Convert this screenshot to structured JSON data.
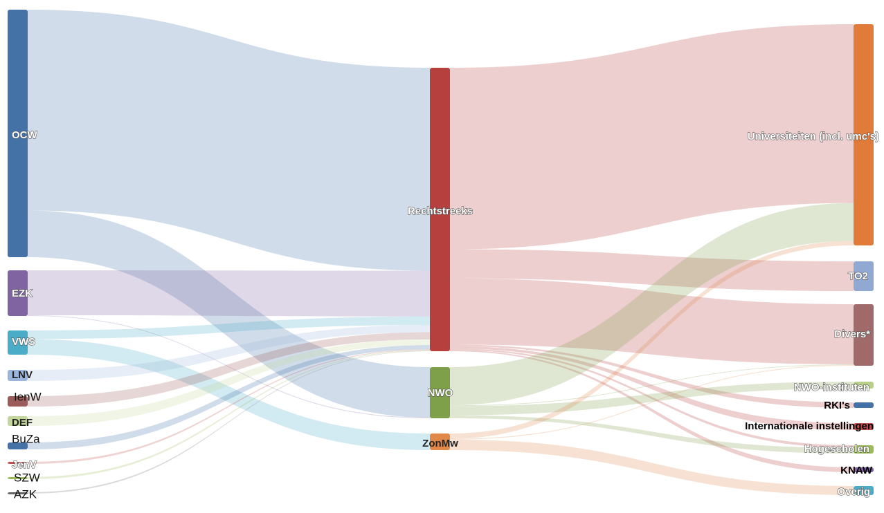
{
  "chart_data": {
    "type": "sankey",
    "nodes": [
      {
        "id": "OCW",
        "label": "OCW",
        "column": 0,
        "color": "#4472a6"
      },
      {
        "id": "EZK",
        "label": "EZK",
        "column": 0,
        "color": "#8064a2"
      },
      {
        "id": "VWS",
        "label": "VWS",
        "column": 0,
        "color": "#4aacc6"
      },
      {
        "id": "LNV",
        "label": "LNV",
        "column": 0,
        "color": "#9ab6dc"
      },
      {
        "id": "IenW",
        "label": "IenW",
        "column": 0,
        "color": "#9c5c5c"
      },
      {
        "id": "DEF",
        "label": "DEF",
        "column": 0,
        "color": "#c3d69b"
      },
      {
        "id": "BuZa",
        "label": "BuZa",
        "column": 0,
        "color": "#4472a6"
      },
      {
        "id": "JenV",
        "label": "JenV",
        "column": 0,
        "color": "#c0504d"
      },
      {
        "id": "SZW",
        "label": "SZW",
        "column": 0,
        "color": "#9bbb59"
      },
      {
        "id": "AZK",
        "label": "AZK",
        "column": 0,
        "color": "#666666"
      },
      {
        "id": "Rechtstreeks",
        "label": "Rechtstreeks",
        "column": 1,
        "color": "#b5403d"
      },
      {
        "id": "NWO",
        "label": "NWO",
        "column": 1,
        "color": "#7fa04a"
      },
      {
        "id": "ZonMw",
        "label": "ZonMw",
        "column": 1,
        "color": "#e0894a"
      },
      {
        "id": "Univ",
        "label": "Universiteiten (incl. umc's)",
        "column": 2,
        "color": "#e07b39"
      },
      {
        "id": "TO2",
        "label": "TO2",
        "column": 2,
        "color": "#8fa9d3"
      },
      {
        "id": "Divers",
        "label": "Divers*",
        "column": 2,
        "color": "#a06a6a"
      },
      {
        "id": "NWOinst",
        "label": "NWO-instituten",
        "column": 2,
        "color": "#b8d08a"
      },
      {
        "id": "RKI",
        "label": "RKI's",
        "column": 2,
        "color": "#4472a6"
      },
      {
        "id": "Intl",
        "label": "Internationale instellingen",
        "column": 2,
        "color": "#c0504d"
      },
      {
        "id": "Hoge",
        "label": "Hogescholen",
        "column": 2,
        "color": "#9bbb59"
      },
      {
        "id": "KNAW",
        "label": "KNAW",
        "column": 2,
        "color": "#8064a2"
      },
      {
        "id": "Overig",
        "label": "Overig",
        "column": 2,
        "color": "#4aacc6"
      }
    ],
    "links": [
      {
        "source": "OCW",
        "target": "Rechtstreeks",
        "value": 142
      },
      {
        "source": "OCW",
        "target": "NWO",
        "value": 33
      },
      {
        "source": "EZK",
        "target": "Rechtstreeks",
        "value": 32
      },
      {
        "source": "EZK",
        "target": "NWO",
        "value": 0.5
      },
      {
        "source": "VWS",
        "target": "Rechtstreeks",
        "value": 6
      },
      {
        "source": "VWS",
        "target": "ZonMw",
        "value": 11
      },
      {
        "source": "LNV",
        "target": "Rechtstreeks",
        "value": 5
      },
      {
        "source": "IenW",
        "target": "Rechtstreeks",
        "value": 5
      },
      {
        "source": "DEF",
        "target": "Rechtstreeks",
        "value": 4
      },
      {
        "source": "BuZa",
        "target": "Rechtstreeks",
        "value": 3
      },
      {
        "source": "JenV",
        "target": "Rechtstreeks",
        "value": 0.5
      },
      {
        "source": "SZW",
        "target": "Rechtstreeks",
        "value": 0.5
      },
      {
        "source": "AZK",
        "target": "Rechtstreeks",
        "value": 0.3
      },
      {
        "source": "Rechtstreeks",
        "target": "Univ",
        "value": 118
      },
      {
        "source": "Rechtstreeks",
        "target": "TO2",
        "value": 19
      },
      {
        "source": "Rechtstreeks",
        "target": "Divers",
        "value": 43
      },
      {
        "source": "Rechtstreeks",
        "target": "RKI",
        "value": 1
      },
      {
        "source": "Rechtstreeks",
        "target": "Intl",
        "value": 1.5
      },
      {
        "source": "Rechtstreeks",
        "target": "Hoge",
        "value": 1
      },
      {
        "source": "Rechtstreeks",
        "target": "KNAW",
        "value": 0.8
      },
      {
        "source": "NWO",
        "target": "Univ",
        "value": 25
      },
      {
        "source": "NWO",
        "target": "NWOinst",
        "value": 6
      },
      {
        "source": "NWO",
        "target": "Hoge",
        "value": 2
      },
      {
        "source": "NWO",
        "target": "Divers",
        "value": 0.5
      },
      {
        "source": "ZonMw",
        "target": "Univ",
        "value": 3
      },
      {
        "source": "ZonMw",
        "target": "Overig",
        "value": 6
      },
      {
        "source": "ZonMw",
        "target": "Divers",
        "value": 0.5
      }
    ]
  }
}
